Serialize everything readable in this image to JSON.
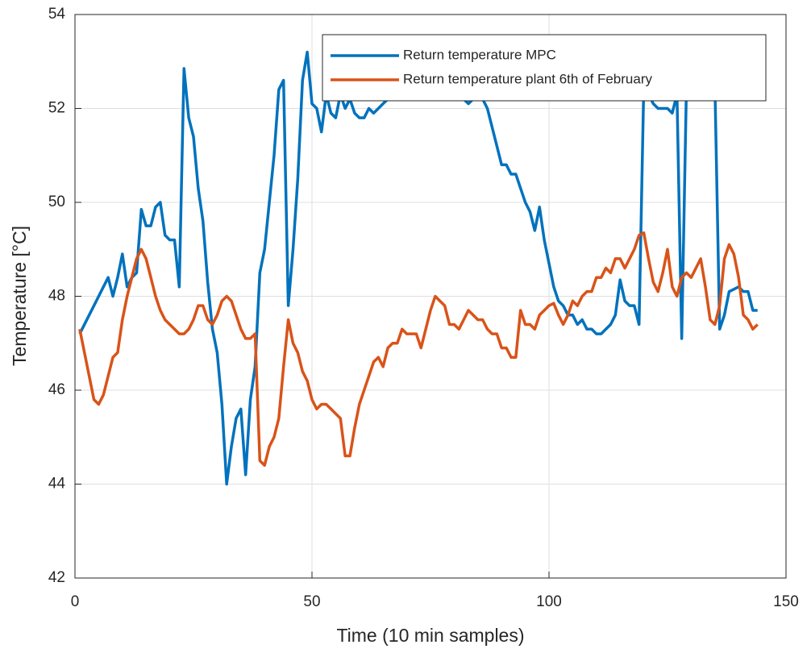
{
  "chart_data": {
    "type": "line",
    "xlabel": "Time (10 min samples)",
    "ylabel": "Temperature [°C]",
    "xlim": [
      0,
      150
    ],
    "xticks": [
      0,
      50,
      100,
      150
    ],
    "ylim": [
      42,
      54
    ],
    "yticks": [
      42,
      44,
      46,
      48,
      50,
      52,
      54
    ],
    "grid": true,
    "legend": "northeast",
    "x": [
      1,
      2,
      3,
      4,
      5,
      6,
      7,
      8,
      9,
      10,
      11,
      12,
      13,
      14,
      15,
      16,
      17,
      18,
      19,
      20,
      21,
      22,
      23,
      24,
      25,
      26,
      27,
      28,
      29,
      30,
      31,
      32,
      33,
      34,
      35,
      36,
      37,
      38,
      39,
      40,
      41,
      42,
      43,
      44,
      45,
      46,
      47,
      48,
      49,
      50,
      51,
      52,
      53,
      54,
      55,
      56,
      57,
      58,
      59,
      60,
      61,
      62,
      63,
      64,
      65,
      66,
      67,
      68,
      69,
      70,
      71,
      72,
      73,
      74,
      75,
      76,
      77,
      78,
      79,
      80,
      81,
      82,
      83,
      84,
      85,
      86,
      87,
      88,
      89,
      90,
      91,
      92,
      93,
      94,
      95,
      96,
      97,
      98,
      99,
      100,
      101,
      102,
      103,
      104,
      105,
      106,
      107,
      108,
      109,
      110,
      111,
      112,
      113,
      114,
      115,
      116,
      117,
      118,
      119,
      120,
      121,
      122,
      123,
      124,
      125,
      126,
      127,
      128,
      129,
      130,
      131,
      132,
      133,
      134,
      135,
      136,
      137,
      138,
      139,
      140,
      141,
      142,
      143,
      144
    ],
    "series": [
      {
        "name": "Return temperature MPC",
        "color": "#0072BD",
        "values": [
          47.2,
          47.4,
          47.6,
          47.8,
          48.0,
          48.2,
          48.4,
          48.0,
          48.4,
          48.9,
          48.2,
          48.4,
          48.5,
          49.85,
          49.5,
          49.5,
          49.9,
          50.0,
          49.3,
          49.2,
          49.2,
          48.2,
          52.85,
          51.8,
          51.4,
          50.3,
          49.6,
          48.3,
          47.3,
          46.8,
          45.7,
          44.0,
          44.8,
          45.4,
          45.6,
          44.2,
          45.8,
          46.5,
          48.5,
          49.0,
          50.0,
          51.0,
          52.4,
          52.6,
          47.8,
          49.0,
          50.5,
          52.6,
          53.2,
          52.1,
          52.0,
          51.5,
          52.3,
          51.9,
          51.8,
          52.3,
          52.0,
          52.2,
          51.9,
          51.8,
          51.8,
          52.0,
          51.9,
          52.0,
          52.1,
          52.2,
          52.3,
          52.4,
          52.5,
          52.5,
          52.5,
          52.5,
          52.4,
          52.3,
          52.3,
          52.2,
          52.2,
          52.2,
          52.2,
          52.2,
          52.2,
          52.2,
          52.1,
          52.2,
          52.2,
          52.2,
          52.0,
          51.6,
          51.2,
          50.8,
          50.8,
          50.6,
          50.6,
          50.3,
          50.0,
          49.8,
          49.4,
          49.9,
          49.2,
          48.7,
          48.2,
          47.9,
          47.8,
          47.6,
          47.6,
          47.4,
          47.5,
          47.3,
          47.3,
          47.2,
          47.2,
          47.3,
          47.4,
          47.6,
          48.35,
          47.9,
          47.8,
          47.8,
          47.4,
          52.5,
          52.3,
          52.1,
          52.0,
          52.0,
          52.0,
          51.9,
          52.3,
          47.1,
          52.5,
          52.5,
          52.5,
          52.5,
          52.5,
          52.5,
          52.5,
          47.3,
          47.6,
          48.1,
          48.15,
          48.2,
          48.1,
          48.1,
          47.7,
          47.7
        ]
      },
      {
        "name": "Return temperature plant 6th of February",
        "color": "#D95319",
        "values": [
          47.3,
          46.8,
          46.3,
          45.8,
          45.7,
          45.9,
          46.3,
          46.7,
          46.8,
          47.5,
          48.0,
          48.4,
          48.8,
          49.0,
          48.8,
          48.4,
          48.0,
          47.7,
          47.5,
          47.4,
          47.3,
          47.2,
          47.2,
          47.3,
          47.5,
          47.8,
          47.8,
          47.5,
          47.4,
          47.6,
          47.9,
          48.0,
          47.9,
          47.6,
          47.3,
          47.1,
          47.1,
          47.2,
          44.5,
          44.4,
          44.8,
          45.0,
          45.4,
          46.5,
          47.5,
          47.0,
          46.8,
          46.4,
          46.2,
          45.8,
          45.6,
          45.7,
          45.7,
          45.6,
          45.5,
          45.4,
          44.6,
          44.6,
          45.2,
          45.7,
          46.0,
          46.3,
          46.6,
          46.7,
          46.5,
          46.9,
          47.0,
          47.0,
          47.3,
          47.2,
          47.2,
          47.2,
          46.9,
          47.3,
          47.7,
          48.0,
          47.9,
          47.8,
          47.4,
          47.4,
          47.3,
          47.5,
          47.7,
          47.6,
          47.5,
          47.5,
          47.3,
          47.2,
          47.2,
          46.9,
          46.9,
          46.7,
          46.7,
          47.7,
          47.4,
          47.4,
          47.3,
          47.6,
          47.7,
          47.8,
          47.85,
          47.6,
          47.4,
          47.6,
          47.9,
          47.8,
          48.0,
          48.1,
          48.1,
          48.4,
          48.4,
          48.6,
          48.5,
          48.8,
          48.8,
          48.6,
          48.8,
          49.0,
          49.3,
          49.35,
          48.8,
          48.3,
          48.1,
          48.5,
          49.0,
          48.2,
          48.0,
          48.4,
          48.5,
          48.4,
          48.6,
          48.8,
          48.2,
          47.5,
          47.4,
          47.8,
          48.8,
          49.1,
          48.9,
          48.4,
          47.6,
          47.5,
          47.3,
          47.4
        ]
      }
    ]
  }
}
